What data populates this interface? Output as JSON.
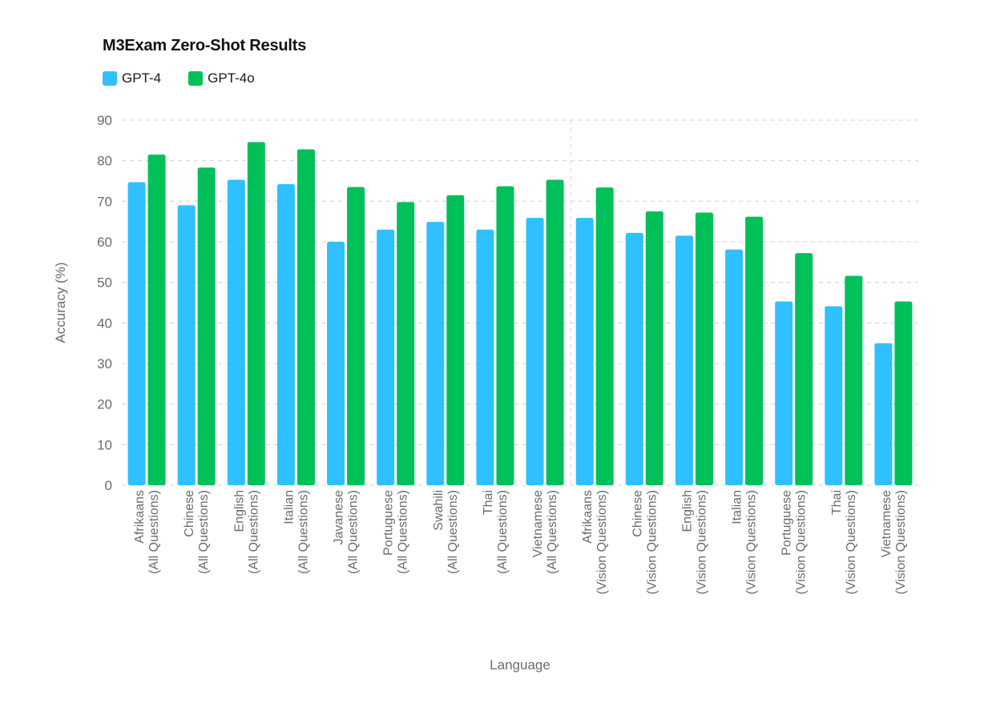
{
  "chart_data": {
    "type": "bar",
    "title": "M3Exam Zero-Shot Results",
    "xlabel": "Language",
    "ylabel": "Accuracy (%)",
    "ylim": [
      0,
      90
    ],
    "yticks": [
      "0",
      "10",
      "20",
      "30",
      "40",
      "50",
      "60",
      "70",
      "80",
      "90"
    ],
    "grid": true,
    "legend_position": "top-left",
    "categories": [
      [
        "Afrikaans",
        "(All Questions)"
      ],
      [
        "Chinese",
        "(All Questions)"
      ],
      [
        "English",
        "(All Questions)"
      ],
      [
        "Italian",
        "(All Questions)"
      ],
      [
        "Javanese",
        "(All Questions)"
      ],
      [
        "Portuguese",
        "(All Questions)"
      ],
      [
        "Swahili",
        "(All Questions)"
      ],
      [
        "Thai",
        "(All Questions)"
      ],
      [
        "Vietnamese",
        "(All Questions)"
      ],
      [
        "Afrikaans",
        "(Vision Questions)"
      ],
      [
        "Chinese",
        "(Vision Questions)"
      ],
      [
        "English",
        "(Vision Questions)"
      ],
      [
        "Italian",
        "(Vision Questions)"
      ],
      [
        "Portuguese",
        "(Vision Questions)"
      ],
      [
        "Thai",
        "(Vision Questions)"
      ],
      [
        "Vietnamese",
        "(Vision Questions)"
      ]
    ],
    "series": [
      {
        "name": "GPT-4",
        "color": "#2ec0ff",
        "values": [
          74.7,
          69.0,
          75.3,
          74.2,
          60.0,
          63.0,
          64.9,
          63.0,
          65.9,
          65.9,
          62.2,
          61.5,
          58.1,
          45.3,
          44.1,
          35.0
        ]
      },
      {
        "name": "GPT-4o",
        "color": "#00c05a",
        "values": [
          81.5,
          78.3,
          84.6,
          82.8,
          73.5,
          69.8,
          71.5,
          73.7,
          75.3,
          73.4,
          67.5,
          67.2,
          66.2,
          57.2,
          51.6,
          45.3
        ]
      }
    ]
  }
}
